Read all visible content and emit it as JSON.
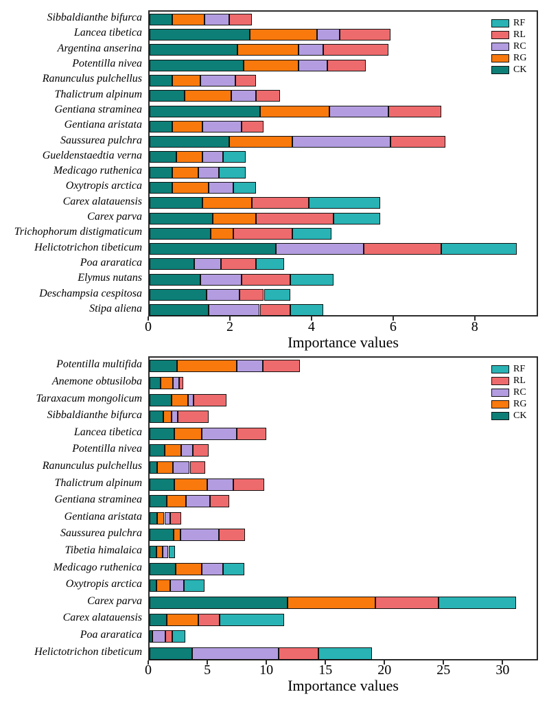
{
  "figure": {
    "background": "#ffffff",
    "axis_title": "Importance values",
    "legend_items": [
      {
        "label": "RF",
        "color": "#29b3b4"
      },
      {
        "label": "RL",
        "color": "#ee6b6d"
      },
      {
        "label": "RC",
        "color": "#b39de0"
      },
      {
        "label": "RG",
        "color": "#f9790d"
      },
      {
        "label": "CK",
        "color": "#0d7f77"
      }
    ],
    "series_colors": {
      "CK": "#0d7f77",
      "RG": "#f9790d",
      "RC": "#b39de0",
      "RL": "#ee6b6d",
      "RF": "#29b3b4"
    },
    "stack_order": [
      "CK",
      "RG",
      "RC",
      "RL",
      "RF"
    ]
  },
  "chart_data": [
    {
      "type": "bar",
      "orientation": "horizontal",
      "stacked": true,
      "xlabel": "Importance values",
      "xlim": [
        0,
        9.55
      ],
      "xticks": [
        0,
        2,
        4,
        6,
        8
      ],
      "grid": false,
      "legend_position": "top-right",
      "legend_entries": [
        "RF",
        "RL",
        "RC",
        "RG",
        "CK"
      ],
      "categories": [
        "Sibbaldianthe bifurca",
        "Lancea tibetica",
        "Argentina anserina",
        "Potentilla nivea",
        "Ranunculus pulchellus",
        "Thalictrum alpinum",
        "Gentiana straminea",
        "Gentiana aristata",
        "Saussurea pulchra",
        "Gueldenstaedtia verna",
        "Medicago ruthenica",
        "Oxytropis arctica",
        "Carex alatauensis",
        "Carex parva",
        "Trichophorum distigmaticum",
        "Helictotrichon tibeticum",
        "Poa araratica",
        "Elymus nutans",
        "Deschampsia cespitosa",
        "Stipa aliena"
      ],
      "series": [
        {
          "name": "CK",
          "values": [
            0.55,
            2.45,
            2.15,
            2.3,
            0.55,
            0.85,
            2.7,
            0.55,
            1.95,
            0.65,
            0.55,
            0.55,
            1.3,
            1.55,
            1.5,
            3.1,
            1.1,
            1.25,
            1.4,
            1.45
          ]
        },
        {
          "name": "RG",
          "values": [
            0.8,
            1.65,
            1.5,
            1.35,
            0.7,
            1.15,
            1.7,
            0.75,
            1.55,
            0.65,
            0.65,
            0.9,
            1.2,
            1.05,
            0.55,
            0,
            0,
            0,
            0,
            0
          ]
        },
        {
          "name": "RC",
          "values": [
            0.6,
            0.55,
            0.6,
            0.7,
            0.85,
            0.6,
            1.45,
            0.95,
            2.4,
            0.5,
            0.5,
            0.6,
            0,
            0,
            0,
            2.15,
            0.65,
            1.0,
            0.8,
            1.25
          ]
        },
        {
          "name": "RL",
          "values": [
            0.55,
            1.25,
            1.6,
            0.95,
            0.5,
            0.6,
            1.3,
            0.55,
            1.35,
            0,
            0,
            0,
            1.4,
            1.9,
            1.45,
            1.9,
            0.85,
            1.2,
            0.6,
            0.75
          ]
        },
        {
          "name": "RF",
          "values": [
            0,
            0,
            0,
            0,
            0,
            0,
            0,
            0,
            0,
            0.55,
            0.65,
            0.55,
            1.75,
            1.15,
            0.95,
            1.85,
            0.7,
            1.05,
            0.65,
            0.8
          ]
        }
      ]
    },
    {
      "type": "bar",
      "orientation": "horizontal",
      "stacked": true,
      "xlabel": "Importance values",
      "xlim": [
        0,
        33
      ],
      "xticks": [
        0,
        5,
        10,
        15,
        20,
        25,
        30
      ],
      "grid": false,
      "legend_position": "top-right",
      "legend_entries": [
        "RF",
        "RL",
        "RC",
        "RG",
        "CK"
      ],
      "categories": [
        "Potentilla multifida",
        "Anemone obtusiloba",
        "Taraxacum mongolicum",
        "Sibbaldianthe bifurca",
        "Lancea tibetica",
        "Potentilla nivea",
        "Ranunculus pulchellus",
        "Thalictrum alpinum",
        "Gentiana straminea",
        "Gentiana aristata",
        "Saussurea pulchra",
        "Tibetia himalaica",
        "Medicago ruthenica",
        "Oxytropis arctica",
        "Carex parva",
        "Carex alatauensis",
        "Poa araratica",
        "Helictotrichon tibeticum"
      ],
      "series": [
        {
          "name": "CK",
          "values": [
            2.3,
            0.9,
            1.85,
            1.15,
            2.1,
            1.25,
            0.65,
            2.1,
            1.45,
            0.65,
            2.05,
            0.55,
            2.2,
            0.55,
            11.65,
            1.45,
            0.25,
            3.6
          ]
        },
        {
          "name": "RG",
          "values": [
            5.1,
            1.05,
            1.4,
            0.7,
            2.3,
            1.4,
            1.35,
            2.8,
            1.6,
            0.6,
            0.55,
            0.55,
            2.2,
            1.2,
            7.45,
            2.65,
            0,
            0
          ]
        },
        {
          "name": "RC",
          "values": [
            2.2,
            0.55,
            0.45,
            0.55,
            3.0,
            1.0,
            1.4,
            2.2,
            2.05,
            0.5,
            3.25,
            0.5,
            1.8,
            1.15,
            0,
            0,
            1.1,
            7.3
          ]
        },
        {
          "name": "RL",
          "values": [
            3.15,
            0.35,
            2.8,
            2.6,
            2.45,
            1.35,
            1.3,
            2.6,
            1.65,
            0.95,
            2.2,
            0,
            0,
            0,
            5.35,
            1.85,
            0.55,
            3.4
          ]
        },
        {
          "name": "RF",
          "values": [
            0,
            0,
            0,
            0,
            0,
            0,
            0,
            0,
            0,
            0,
            0,
            0.55,
            1.8,
            1.75,
            6.6,
            5.45,
            1.15,
            4.55
          ]
        }
      ]
    }
  ]
}
